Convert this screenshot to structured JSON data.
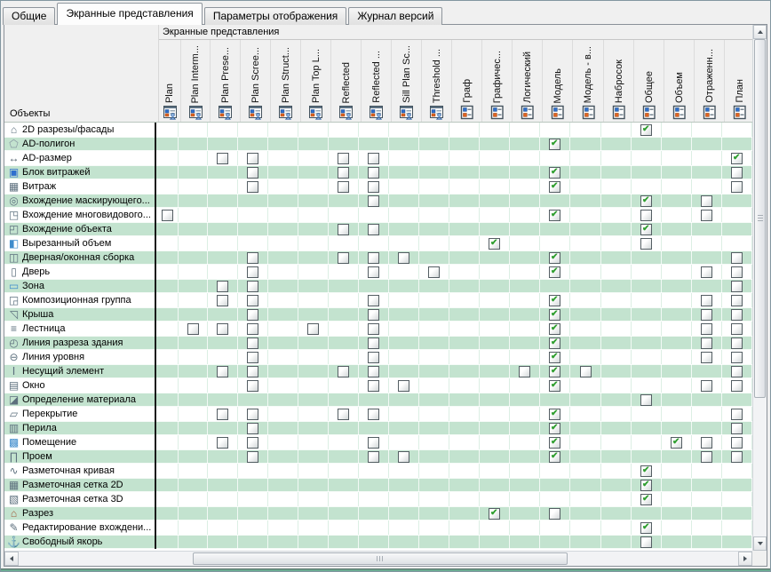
{
  "window": {
    "background": "#f0f0f0",
    "green_row_color": "#c3e3cf",
    "check_color": "#2f9e2f",
    "bottom_accent_color": "#6fbf9e"
  },
  "tabs": [
    {
      "label": "Общие",
      "active": false
    },
    {
      "label": "Экранные представления",
      "active": true
    },
    {
      "label": "Параметры отображения",
      "active": false
    },
    {
      "label": "Журнал версий",
      "active": false
    }
  ],
  "table": {
    "group_header": "Экранные представления",
    "objects_header": "Объекты",
    "columns": [
      {
        "label": "Plan",
        "icon": "view-user-icon"
      },
      {
        "label": "Plan Interm...",
        "icon": "view-user-icon"
      },
      {
        "label": "Plan Prese...",
        "icon": "view-user-icon"
      },
      {
        "label": "Plan Scree...",
        "icon": "view-user-icon"
      },
      {
        "label": "Plan Struct...",
        "icon": "view-user-icon"
      },
      {
        "label": "Plan Top L...",
        "icon": "view-user-icon"
      },
      {
        "label": "Reflected",
        "icon": "view-user-icon"
      },
      {
        "label": "Reflected ...",
        "icon": "view-user-icon"
      },
      {
        "label": "Sill Plan Sc...",
        "icon": "view-user-icon"
      },
      {
        "label": "Threshold ...",
        "icon": "view-user-icon"
      },
      {
        "label": "Граф",
        "icon": "form-icon"
      },
      {
        "label": "Графичес...",
        "icon": "form-icon"
      },
      {
        "label": "Логический",
        "icon": "form-icon"
      },
      {
        "label": "Модель",
        "icon": "form-icon"
      },
      {
        "label": "Модель - в...",
        "icon": "form-icon"
      },
      {
        "label": "Набросок",
        "icon": "form-icon"
      },
      {
        "label": "Общее",
        "icon": "form-icon"
      },
      {
        "label": "Объем",
        "icon": "form-icon"
      },
      {
        "label": "Отраженн...",
        "icon": "form-icon"
      },
      {
        "label": "План",
        "icon": "form-icon"
      }
    ],
    "rows": [
      {
        "label": "2D разрезы/фасады",
        "icon": "house-icon",
        "checked": [
          16
        ],
        "unchecked": []
      },
      {
        "label": "AD-полигон",
        "icon": "polygon-icon",
        "checked": [
          13
        ],
        "unchecked": []
      },
      {
        "label": "AD-размер",
        "icon": "dimension-icon",
        "checked": [
          19
        ],
        "unchecked": [
          2,
          3,
          6,
          7
        ]
      },
      {
        "label": "Блок витражей",
        "icon": "curtain-wall-block-icon",
        "checked": [
          13
        ],
        "unchecked": [
          3,
          6,
          7,
          19
        ]
      },
      {
        "label": "Витраж",
        "icon": "curtain-wall-icon",
        "checked": [
          13
        ],
        "unchecked": [
          3,
          6,
          7,
          19
        ]
      },
      {
        "label": "Вхождение маскирующего...",
        "icon": "masking-instance-icon",
        "checked": [
          16
        ],
        "unchecked": [
          7,
          18
        ]
      },
      {
        "label": "Вхождение многовидового...",
        "icon": "multiview-instance-icon",
        "checked": [
          13
        ],
        "unchecked": [
          0,
          16,
          18
        ]
      },
      {
        "label": "Вхождение объекта",
        "icon": "object-instance-icon",
        "checked": [
          16
        ],
        "unchecked": [
          6,
          7
        ]
      },
      {
        "label": "Вырезанный объем",
        "icon": "cut-volume-icon",
        "checked": [
          11
        ],
        "unchecked": [
          16
        ]
      },
      {
        "label": "Дверная/оконная сборка",
        "icon": "door-window-assembly-icon",
        "checked": [
          13
        ],
        "unchecked": [
          3,
          6,
          7,
          8,
          19
        ]
      },
      {
        "label": "Дверь",
        "icon": "door-icon",
        "checked": [
          13
        ],
        "unchecked": [
          3,
          7,
          9,
          18,
          19
        ]
      },
      {
        "label": "Зона",
        "icon": "zone-icon",
        "checked": [],
        "unchecked": [
          2,
          3,
          19
        ]
      },
      {
        "label": "Композиционная группа",
        "icon": "composite-group-icon",
        "checked": [
          13
        ],
        "unchecked": [
          2,
          3,
          7,
          18,
          19
        ]
      },
      {
        "label": "Крыша",
        "icon": "roof-icon",
        "checked": [
          13
        ],
        "unchecked": [
          3,
          7,
          18,
          19
        ]
      },
      {
        "label": "Лестница",
        "icon": "stairs-icon",
        "checked": [
          13
        ],
        "unchecked": [
          1,
          2,
          3,
          5,
          7,
          18,
          19
        ]
      },
      {
        "label": "Линия разреза здания",
        "icon": "section-line-icon",
        "checked": [
          13
        ],
        "unchecked": [
          3,
          7,
          18,
          19
        ]
      },
      {
        "label": "Линия уровня",
        "icon": "level-line-icon",
        "checked": [
          13
        ],
        "unchecked": [
          3,
          7,
          18,
          19
        ]
      },
      {
        "label": "Несущий элемент",
        "icon": "beam-icon",
        "checked": [
          13
        ],
        "unchecked": [
          2,
          3,
          6,
          7,
          12,
          14,
          19
        ]
      },
      {
        "label": "Окно",
        "icon": "window-icon",
        "checked": [
          13
        ],
        "unchecked": [
          3,
          7,
          8,
          18,
          19
        ]
      },
      {
        "label": "Определение материала",
        "icon": "material-icon",
        "checked": [],
        "unchecked": [
          16
        ]
      },
      {
        "label": "Перекрытие",
        "icon": "slab-icon",
        "checked": [
          13
        ],
        "unchecked": [
          2,
          3,
          6,
          7,
          19
        ]
      },
      {
        "label": "Перила",
        "icon": "railing-icon",
        "checked": [
          13
        ],
        "unchecked": [
          3,
          19
        ]
      },
      {
        "label": "Помещение",
        "icon": "room-icon",
        "checked": [
          13,
          17
        ],
        "unchecked": [
          2,
          3,
          7,
          18,
          19
        ]
      },
      {
        "label": "Проем",
        "icon": "opening-icon",
        "checked": [
          13
        ],
        "unchecked": [
          3,
          7,
          8,
          18,
          19
        ]
      },
      {
        "label": "Разметочная кривая",
        "icon": "marking-curve-icon",
        "checked": [
          16
        ],
        "unchecked": []
      },
      {
        "label": "Разметочная сетка 2D",
        "icon": "grid-2d-icon",
        "checked": [
          16
        ],
        "unchecked": []
      },
      {
        "label": "Разметочная сетка 3D",
        "icon": "grid-3d-icon",
        "checked": [
          16
        ],
        "unchecked": []
      },
      {
        "label": "Разрез",
        "icon": "section-icon",
        "checked": [
          11
        ],
        "unchecked": [
          13
        ]
      },
      {
        "label": "Редактирование вхождени...",
        "icon": "edit-instance-icon",
        "checked": [
          16
        ],
        "unchecked": []
      },
      {
        "label": "Свободный якорь",
        "icon": "free-anchor-icon",
        "checked": [],
        "unchecked": [
          16
        ]
      }
    ]
  },
  "icon_glyphs": {
    "house-icon": {
      "ch": "⌂",
      "color": "#5c6f7d"
    },
    "polygon-icon": {
      "ch": "⬠",
      "color": "#8a9aa4"
    },
    "dimension-icon": {
      "ch": "↔",
      "color": "#4a5a66"
    },
    "curtain-wall-block-icon": {
      "ch": "▣",
      "color": "#2f6fce"
    },
    "curtain-wall-icon": {
      "ch": "▦",
      "color": "#5c6f7d"
    },
    "masking-instance-icon": {
      "ch": "◎",
      "color": "#5c6f7d"
    },
    "multiview-instance-icon": {
      "ch": "◳",
      "color": "#5c6f7d"
    },
    "object-instance-icon": {
      "ch": "◰",
      "color": "#5c6f7d"
    },
    "cut-volume-icon": {
      "ch": "◧",
      "color": "#3f8ccc"
    },
    "door-window-assembly-icon": {
      "ch": "◫",
      "color": "#5c6f7d"
    },
    "door-icon": {
      "ch": "▯",
      "color": "#5c6f7d"
    },
    "zone-icon": {
      "ch": "▭",
      "color": "#3f8ccc"
    },
    "composite-group-icon": {
      "ch": "◲",
      "color": "#5c6f7d"
    },
    "roof-icon": {
      "ch": "◹",
      "color": "#5c6f7d"
    },
    "stairs-icon": {
      "ch": "≡",
      "color": "#5c6f7d"
    },
    "section-line-icon": {
      "ch": "◴",
      "color": "#5c6f7d"
    },
    "level-line-icon": {
      "ch": "⊖",
      "color": "#5c6f7d"
    },
    "beam-icon": {
      "ch": "Ⅰ",
      "color": "#5c6f7d"
    },
    "window-icon": {
      "ch": "▤",
      "color": "#5c6f7d"
    },
    "material-icon": {
      "ch": "◪",
      "color": "#5c6f7d"
    },
    "slab-icon": {
      "ch": "▱",
      "color": "#5c6f7d"
    },
    "railing-icon": {
      "ch": "▥",
      "color": "#5c6f7d"
    },
    "room-icon": {
      "ch": "▩",
      "color": "#3f8ccc"
    },
    "opening-icon": {
      "ch": "∏",
      "color": "#5c6f7d"
    },
    "marking-curve-icon": {
      "ch": "∿",
      "color": "#5c6f7d"
    },
    "grid-2d-icon": {
      "ch": "▦",
      "color": "#5c6f7d"
    },
    "grid-3d-icon": {
      "ch": "▧",
      "color": "#5c6f7d"
    },
    "section-icon": {
      "ch": "⌂",
      "color": "#a05a3a"
    },
    "edit-instance-icon": {
      "ch": "✎",
      "color": "#5c6f7d"
    },
    "free-anchor-icon": {
      "ch": "⚓",
      "color": "#5c6f7d"
    }
  }
}
